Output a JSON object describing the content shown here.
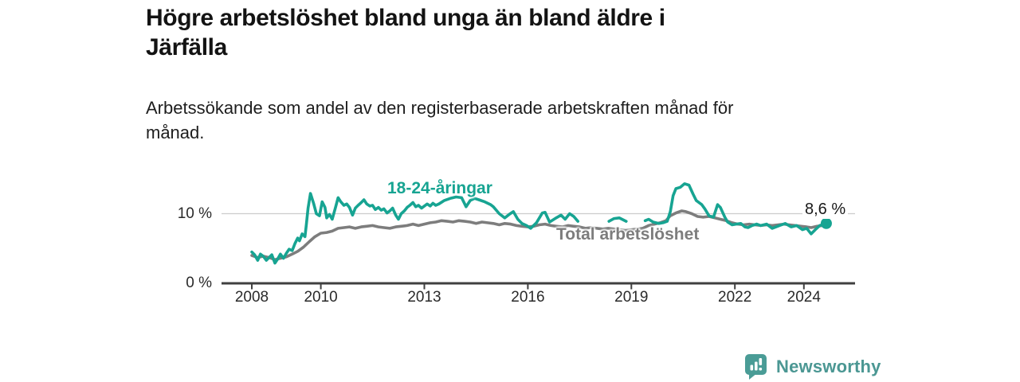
{
  "page": {
    "background": "#ffffff"
  },
  "header": {
    "title": "Högre arbetslöshet bland unga än bland äldre i\nJärfälla",
    "subtitle": "Arbetssökande som andel av den registerbaserade arbetskraften månad för\nmånad."
  },
  "chart_data": {
    "type": "line",
    "title": "Högre arbetslöshet bland unga än bland äldre i Järfälla",
    "subtitle": "Arbetssökande som andel av den registerbaserade arbetskraften månad för månad.",
    "grid": "horizontal gridline at 10% only",
    "legend_position": "direct labels on lines",
    "x_axis": {
      "range": [
        2007.6,
        2025.3
      ],
      "ticks": [
        {
          "year": 2008,
          "label": "2008"
        },
        {
          "year": 2010,
          "label": "2010"
        },
        {
          "year": 2013,
          "label": "2013"
        },
        {
          "year": 2016,
          "label": "2016"
        },
        {
          "year": 2019,
          "label": "2019"
        },
        {
          "year": 2022,
          "label": "2022"
        },
        {
          "year": 2024,
          "label": "2024"
        }
      ]
    },
    "y_axis": {
      "unit": "%",
      "range": [
        0,
        15
      ],
      "ticks": [
        {
          "value": 0,
          "label": "0 %"
        },
        {
          "value": 10,
          "label": "10 %"
        }
      ]
    },
    "series": [
      {
        "name": "18-24-åringar",
        "label": "18-24-åringar",
        "color": "#17a492",
        "segments": [
          [
            [
              2008.0,
              4.5
            ],
            [
              2008.08,
              4.1
            ],
            [
              2008.17,
              3.3
            ],
            [
              2008.25,
              4.2
            ],
            [
              2008.33,
              3.9
            ],
            [
              2008.42,
              3.3
            ],
            [
              2008.5,
              3.7
            ],
            [
              2008.58,
              4.1
            ],
            [
              2008.67,
              2.9
            ],
            [
              2008.75,
              3.5
            ],
            [
              2008.83,
              4.2
            ],
            [
              2008.92,
              3.6
            ],
            [
              2009.0,
              4.3
            ],
            [
              2009.08,
              4.9
            ],
            [
              2009.17,
              4.7
            ],
            [
              2009.25,
              5.7
            ],
            [
              2009.33,
              6.5
            ],
            [
              2009.38,
              6.1
            ],
            [
              2009.46,
              7.1
            ],
            [
              2009.54,
              6.7
            ],
            [
              2009.58,
              8.4
            ],
            [
              2009.63,
              10.8
            ],
            [
              2009.7,
              12.9
            ],
            [
              2009.79,
              11.5
            ],
            [
              2009.87,
              10.0
            ],
            [
              2009.96,
              9.7
            ],
            [
              2010.04,
              11.7
            ],
            [
              2010.12,
              10.9
            ],
            [
              2010.17,
              9.4
            ],
            [
              2010.25,
              9.9
            ],
            [
              2010.33,
              9.2
            ],
            [
              2010.42,
              10.8
            ],
            [
              2010.5,
              12.3
            ],
            [
              2010.58,
              11.7
            ],
            [
              2010.67,
              11.2
            ],
            [
              2010.75,
              11.4
            ],
            [
              2010.83,
              10.9
            ],
            [
              2010.92,
              9.8
            ],
            [
              2011.0,
              10.8
            ],
            [
              2011.08,
              11.2
            ],
            [
              2011.17,
              11.6
            ],
            [
              2011.25,
              12.0
            ],
            [
              2011.33,
              11.4
            ],
            [
              2011.42,
              11.1
            ],
            [
              2011.5,
              11.2
            ],
            [
              2011.58,
              10.6
            ],
            [
              2011.67,
              10.9
            ],
            [
              2011.75,
              10.5
            ],
            [
              2011.83,
              10.7
            ],
            [
              2011.92,
              10.1
            ],
            [
              2012.0,
              10.4
            ],
            [
              2012.08,
              10.8
            ],
            [
              2012.17,
              9.8
            ],
            [
              2012.25,
              9.2
            ],
            [
              2012.33,
              10.0
            ],
            [
              2012.42,
              10.4
            ],
            [
              2012.5,
              10.9
            ],
            [
              2012.58,
              11.2
            ],
            [
              2012.67,
              11.6
            ],
            [
              2012.75,
              11.0
            ],
            [
              2012.83,
              11.2
            ],
            [
              2012.92,
              10.8
            ],
            [
              2013.0,
              11.1
            ],
            [
              2013.08,
              11.4
            ],
            [
              2013.17,
              11.1
            ],
            [
              2013.25,
              11.5
            ],
            [
              2013.33,
              11.2
            ],
            [
              2013.42,
              11.4
            ],
            [
              2013.58,
              11.9
            ],
            [
              2013.75,
              12.2
            ],
            [
              2013.92,
              12.4
            ],
            [
              2014.08,
              12.3
            ],
            [
              2014.21,
              11.0
            ],
            [
              2014.33,
              11.9
            ],
            [
              2014.46,
              12.2
            ],
            [
              2014.58,
              12.0
            ],
            [
              2014.75,
              11.7
            ],
            [
              2014.92,
              11.3
            ],
            [
              2015.0,
              11.0
            ],
            [
              2015.17,
              10.0
            ],
            [
              2015.33,
              9.4
            ],
            [
              2015.46,
              9.9
            ],
            [
              2015.58,
              10.3
            ],
            [
              2015.71,
              9.2
            ],
            [
              2015.83,
              8.6
            ],
            [
              2015.96,
              8.3
            ],
            [
              2016.08,
              7.9
            ],
            [
              2016.25,
              8.7
            ],
            [
              2016.42,
              10.1
            ],
            [
              2016.5,
              10.2
            ],
            [
              2016.63,
              8.8
            ],
            [
              2016.79,
              9.3
            ],
            [
              2016.96,
              9.8
            ],
            [
              2017.08,
              9.2
            ],
            [
              2017.21,
              10.0
            ],
            [
              2017.33,
              9.6
            ],
            [
              2017.45,
              8.9
            ]
          ],
          [
            [
              2018.35,
              8.9
            ],
            [
              2018.5,
              9.3
            ],
            [
              2018.65,
              9.4
            ],
            [
              2018.85,
              8.9
            ]
          ],
          [
            [
              2019.4,
              9.0
            ],
            [
              2019.5,
              9.2
            ],
            [
              2019.63,
              8.8
            ],
            [
              2019.79,
              8.6
            ],
            [
              2019.92,
              8.7
            ],
            [
              2020.04,
              8.9
            ],
            [
              2020.13,
              10.3
            ],
            [
              2020.21,
              12.6
            ],
            [
              2020.29,
              13.6
            ],
            [
              2020.42,
              13.8
            ],
            [
              2020.54,
              14.3
            ],
            [
              2020.67,
              14.1
            ],
            [
              2020.79,
              12.8
            ],
            [
              2020.88,
              11.9
            ],
            [
              2021.04,
              11.3
            ],
            [
              2021.13,
              10.7
            ],
            [
              2021.25,
              9.7
            ],
            [
              2021.38,
              9.5
            ],
            [
              2021.5,
              11.3
            ],
            [
              2021.58,
              10.9
            ],
            [
              2021.71,
              9.5
            ],
            [
              2021.79,
              8.8
            ],
            [
              2021.92,
              8.4
            ],
            [
              2022.04,
              8.5
            ],
            [
              2022.17,
              8.6
            ],
            [
              2022.29,
              8.1
            ],
            [
              2022.38,
              8.0
            ],
            [
              2022.5,
              8.3
            ],
            [
              2022.63,
              8.5
            ],
            [
              2022.75,
              8.3
            ],
            [
              2022.92,
              8.5
            ],
            [
              2023.08,
              7.9
            ],
            [
              2023.29,
              8.3
            ],
            [
              2023.46,
              8.6
            ],
            [
              2023.63,
              8.1
            ],
            [
              2023.79,
              8.3
            ],
            [
              2023.96,
              7.7
            ],
            [
              2024.08,
              7.9
            ],
            [
              2024.21,
              7.1
            ],
            [
              2024.33,
              7.7
            ],
            [
              2024.46,
              8.3
            ],
            [
              2024.65,
              8.6
            ]
          ]
        ]
      },
      {
        "name": "Total arbetslöshet",
        "label": "Total arbetslöshet",
        "color": "#7d7d7d",
        "segments": [
          [
            [
              2008.0,
              4.0
            ],
            [
              2008.17,
              3.7
            ],
            [
              2008.33,
              3.9
            ],
            [
              2008.5,
              3.7
            ],
            [
              2008.67,
              3.4
            ],
            [
              2008.83,
              3.6
            ],
            [
              2009.0,
              3.8
            ],
            [
              2009.17,
              4.2
            ],
            [
              2009.33,
              4.6
            ],
            [
              2009.5,
              5.2
            ],
            [
              2009.67,
              6.0
            ],
            [
              2009.83,
              6.7
            ],
            [
              2010.0,
              7.2
            ],
            [
              2010.17,
              7.3
            ],
            [
              2010.33,
              7.5
            ],
            [
              2010.5,
              7.9
            ],
            [
              2010.67,
              8.0
            ],
            [
              2010.83,
              8.1
            ],
            [
              2011.0,
              7.9
            ],
            [
              2011.17,
              8.1
            ],
            [
              2011.33,
              8.2
            ],
            [
              2011.5,
              8.3
            ],
            [
              2011.67,
              8.1
            ],
            [
              2011.83,
              8.0
            ],
            [
              2012.0,
              7.9
            ],
            [
              2012.17,
              8.1
            ],
            [
              2012.33,
              8.2
            ],
            [
              2012.5,
              8.3
            ],
            [
              2012.67,
              8.5
            ],
            [
              2012.83,
              8.3
            ],
            [
              2013.0,
              8.5
            ],
            [
              2013.17,
              8.7
            ],
            [
              2013.33,
              8.8
            ],
            [
              2013.5,
              9.0
            ],
            [
              2013.67,
              8.9
            ],
            [
              2013.83,
              8.8
            ],
            [
              2014.0,
              9.0
            ],
            [
              2014.17,
              8.9
            ],
            [
              2014.33,
              8.8
            ],
            [
              2014.5,
              8.6
            ],
            [
              2014.67,
              8.8
            ],
            [
              2014.83,
              8.7
            ],
            [
              2015.0,
              8.6
            ],
            [
              2015.17,
              8.4
            ],
            [
              2015.33,
              8.6
            ],
            [
              2015.5,
              8.5
            ],
            [
              2015.67,
              8.3
            ],
            [
              2015.83,
              8.2
            ],
            [
              2016.0,
              8.1
            ],
            [
              2016.17,
              8.2
            ],
            [
              2016.33,
              8.4
            ],
            [
              2016.5,
              8.5
            ],
            [
              2016.67,
              8.3
            ],
            [
              2016.83,
              8.2
            ],
            [
              2017.0,
              8.1
            ],
            [
              2017.17,
              8.3
            ],
            [
              2017.33,
              8.2
            ],
            [
              2017.5,
              8.1
            ],
            [
              2017.67,
              7.9
            ],
            [
              2017.83,
              8.0
            ],
            [
              2018.0,
              7.9
            ],
            [
              2018.17,
              7.8
            ],
            [
              2018.33,
              7.9
            ],
            [
              2018.5,
              7.8
            ],
            [
              2018.67,
              7.7
            ],
            [
              2018.83,
              7.6
            ],
            [
              2019.0,
              7.7
            ],
            [
              2019.17,
              7.8
            ],
            [
              2019.33,
              7.9
            ],
            [
              2019.5,
              8.3
            ],
            [
              2019.67,
              8.5
            ],
            [
              2019.83,
              8.7
            ],
            [
              2020.0,
              9.0
            ],
            [
              2020.13,
              9.7
            ],
            [
              2020.29,
              10.1
            ],
            [
              2020.46,
              10.4
            ],
            [
              2020.58,
              10.3
            ],
            [
              2020.75,
              10.0
            ],
            [
              2020.92,
              9.6
            ],
            [
              2021.08,
              9.5
            ],
            [
              2021.25,
              9.6
            ],
            [
              2021.42,
              9.4
            ],
            [
              2021.58,
              9.2
            ],
            [
              2021.75,
              9.0
            ],
            [
              2021.92,
              8.7
            ],
            [
              2022.08,
              8.5
            ],
            [
              2022.25,
              8.4
            ],
            [
              2022.42,
              8.5
            ],
            [
              2022.58,
              8.4
            ],
            [
              2022.75,
              8.3
            ],
            [
              2022.92,
              8.4
            ],
            [
              2023.08,
              8.3
            ],
            [
              2023.25,
              8.4
            ],
            [
              2023.42,
              8.5
            ],
            [
              2023.58,
              8.4
            ],
            [
              2023.75,
              8.3
            ],
            [
              2023.92,
              8.2
            ],
            [
              2024.08,
              8.1
            ],
            [
              2024.21,
              8.0
            ],
            [
              2024.38,
              8.2
            ],
            [
              2024.55,
              8.3
            ],
            [
              2024.65,
              8.4
            ]
          ]
        ]
      }
    ],
    "end_annotation": {
      "text": "8,6 %",
      "series": "18-24-åringar",
      "year": 2024.65,
      "value": 8.6
    }
  },
  "footer": {
    "brand": "Newsworthy",
    "brand_color": "#4b9793"
  }
}
